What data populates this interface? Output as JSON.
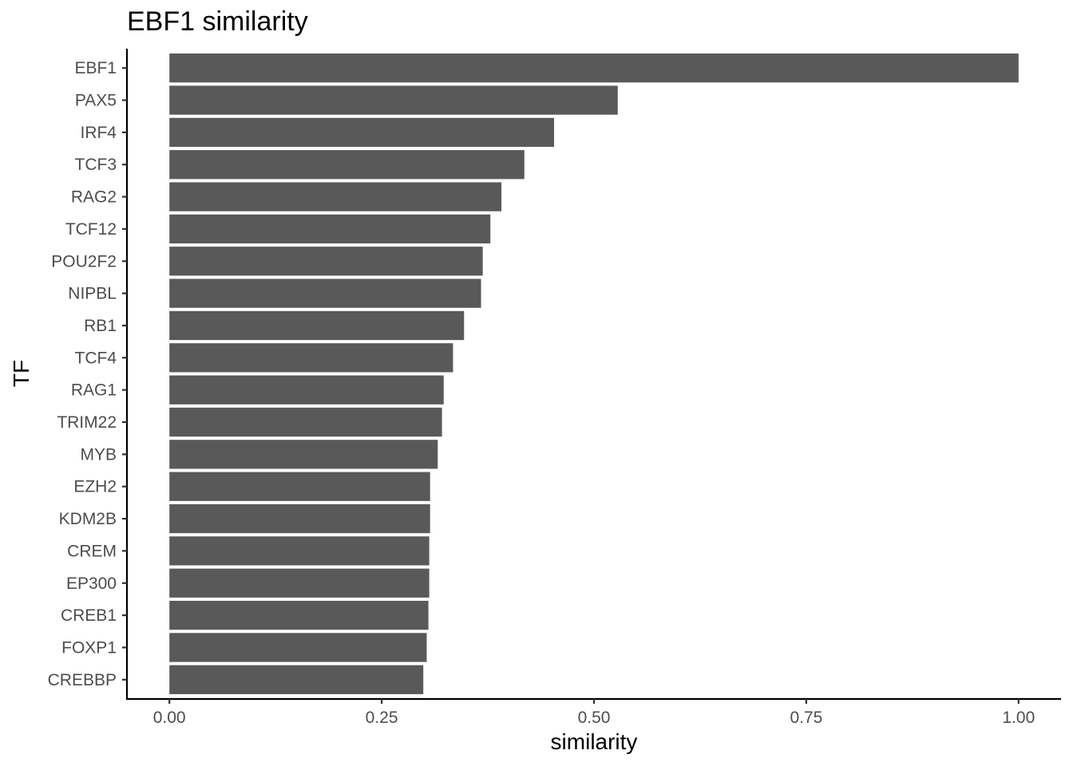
{
  "chart_data": {
    "type": "bar",
    "orientation": "horizontal",
    "title": "EBF1 similarity",
    "xlabel": "similarity",
    "ylabel": "TF",
    "categories": [
      "EBF1",
      "PAX5",
      "IRF4",
      "TCF3",
      "RAG2",
      "TCF12",
      "POU2F2",
      "NIPBL",
      "RB1",
      "TCF4",
      "RAG1",
      "TRIM22",
      "MYB",
      "EZH2",
      "KDM2B",
      "CREM",
      "EP300",
      "CREB1",
      "FOXP1",
      "CREBBP"
    ],
    "values": [
      1.0,
      0.528,
      0.453,
      0.418,
      0.391,
      0.378,
      0.369,
      0.367,
      0.347,
      0.334,
      0.323,
      0.321,
      0.316,
      0.307,
      0.307,
      0.306,
      0.306,
      0.305,
      0.303,
      0.299
    ],
    "xlim": [
      -0.05,
      1.05
    ],
    "xticks": [
      0.0,
      0.25,
      0.5,
      0.75,
      1.0
    ],
    "xtick_labels": [
      "0.00",
      "0.25",
      "0.50",
      "0.75",
      "1.00"
    ],
    "grid": false,
    "legend": "none",
    "bar_color": "#595959"
  }
}
